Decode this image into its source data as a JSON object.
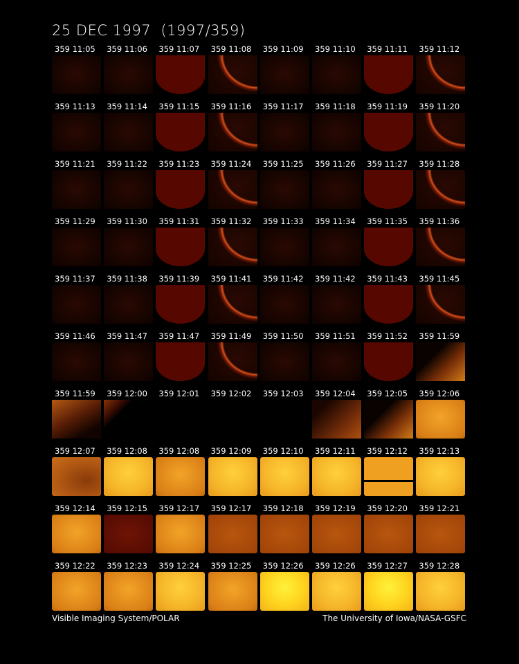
{
  "title": "25 DEC 1997  (1997/359)",
  "rows": [
    [
      "359 11:05",
      "359 11:06",
      "359 11:07",
      "359 11:08",
      "359 11:09",
      "359 11:10",
      "359 11:11",
      "359 11:12"
    ],
    [
      "359 11:13",
      "359 11:14",
      "359 11:15",
      "359 11:16",
      "359 11:17",
      "359 11:18",
      "359 11:19",
      "359 11:20"
    ],
    [
      "359 11:21",
      "359 11:22",
      "359 11:23",
      "359 11:24",
      "359 11:25",
      "359 11:26",
      "359 11:27",
      "359 11:28"
    ],
    [
      "359 11:29",
      "359 11:30",
      "359 11:31",
      "359 11:32",
      "359 11:33",
      "359 11:34",
      "359 11:35",
      "359 11:36"
    ],
    [
      "359 11:37",
      "359 11:38",
      "359 11:39",
      "359 11:41",
      "359 11:42",
      "359 11:42",
      "359 11:43",
      "359 11:45"
    ],
    [
      "359 11:46",
      "359 11:47",
      "359 11:47",
      "359 11:49",
      "359 11:50",
      "359 11:51",
      "359 11:52",
      "359 11:59"
    ],
    [
      "359 11:59",
      "359 12:00",
      "359 12:01",
      "359 12:02",
      "359 12:03",
      "359 12:04",
      "359 12:05",
      "359 12:06"
    ],
    [
      "359 12:07",
      "359 12:08",
      "359 12:08",
      "359 12:09",
      "359 12:10",
      "359 12:11",
      "359 12:12",
      "359 12:13"
    ],
    [
      "359 12:14",
      "359 12:15",
      "359 12:17",
      "359 12:17",
      "359 12:18",
      "359 12:19",
      "359 12:20",
      "359 12:21"
    ],
    [
      "359 12:22",
      "359 12:23",
      "359 12:24",
      "359 12:25",
      "359 12:26",
      "359 12:26",
      "359 12:27",
      "359 12:28"
    ]
  ],
  "footer": {
    "left": "Visible Imaging System/POLAR",
    "right": "The University of Iowa/NASA-GSFC"
  }
}
